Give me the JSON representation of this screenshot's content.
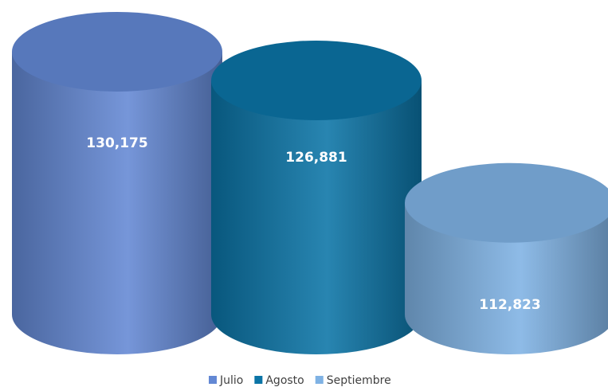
{
  "chart_data": {
    "type": "cylinder",
    "categories": [
      null
    ],
    "series": [
      {
        "name": "Julio",
        "color": "#6388d4",
        "values": [
          130175
        ],
        "value_labels": [
          "130,175"
        ]
      },
      {
        "name": "Agosto",
        "color": "#0b74a6",
        "values": [
          126881
        ],
        "value_labels": [
          "126,881"
        ]
      },
      {
        "name": "Septiembre",
        "color": "#7fb2e4",
        "values": [
          112823
        ],
        "value_labels": [
          "112,823"
        ]
      }
    ],
    "ylim": [
      100000,
      132000
    ],
    "legend": "bottom"
  }
}
